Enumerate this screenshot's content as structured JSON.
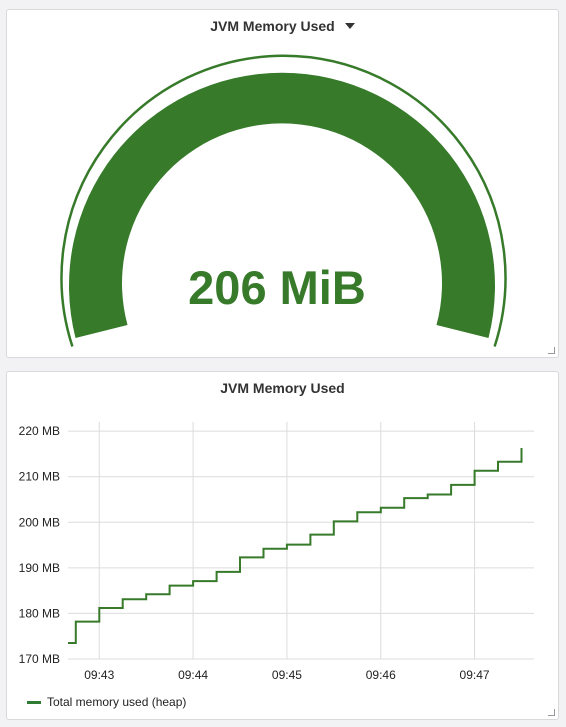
{
  "gauge_panel": {
    "title": "JVM Memory Used",
    "value_text": "206 MiB",
    "color": "#367a2a"
  },
  "graph_panel": {
    "title": "JVM Memory Used"
  },
  "chart_data": {
    "type": "line",
    "title": "JVM Memory Used",
    "y_ticks": [
      "170 MB",
      "180 MB",
      "190 MB",
      "200 MB",
      "210 MB",
      "220 MB"
    ],
    "y_tick_values": [
      170,
      180,
      190,
      200,
      210,
      220
    ],
    "ylim": [
      170,
      222
    ],
    "x_ticks": [
      "09:43",
      "09:44",
      "09:45",
      "09:46",
      "09:47"
    ],
    "x_tick_values": [
      0,
      60,
      120,
      180,
      240
    ],
    "xlim": [
      -20,
      278
    ],
    "step": true,
    "grid": true,
    "series": [
      {
        "name": "Total memory used (heap)",
        "color": "#367a2a",
        "x": [
          -20,
          -15,
          -15,
          0,
          0,
          15,
          15,
          30,
          30,
          45,
          45,
          60,
          60,
          75,
          75,
          90,
          90,
          105,
          105,
          120,
          120,
          135,
          135,
          150,
          150,
          165,
          165,
          180,
          180,
          195,
          195,
          210,
          210,
          225,
          225,
          240,
          240,
          255,
          255,
          270,
          270
        ],
        "y": [
          173.5,
          173.5,
          178.2,
          178.2,
          181.2,
          181.2,
          183.1,
          183.1,
          184.2,
          184.2,
          186.1,
          186.1,
          187.1,
          187.1,
          189.1,
          189.1,
          192.3,
          192.3,
          194.2,
          194.2,
          195.1,
          195.1,
          197.3,
          197.3,
          200.2,
          200.2,
          202.2,
          202.2,
          203.2,
          203.2,
          205.3,
          205.3,
          206.1,
          206.1,
          208.2,
          208.2,
          211.3,
          211.3,
          213.3,
          213.3,
          216.3
        ]
      }
    ],
    "legend": "bottom-left"
  }
}
